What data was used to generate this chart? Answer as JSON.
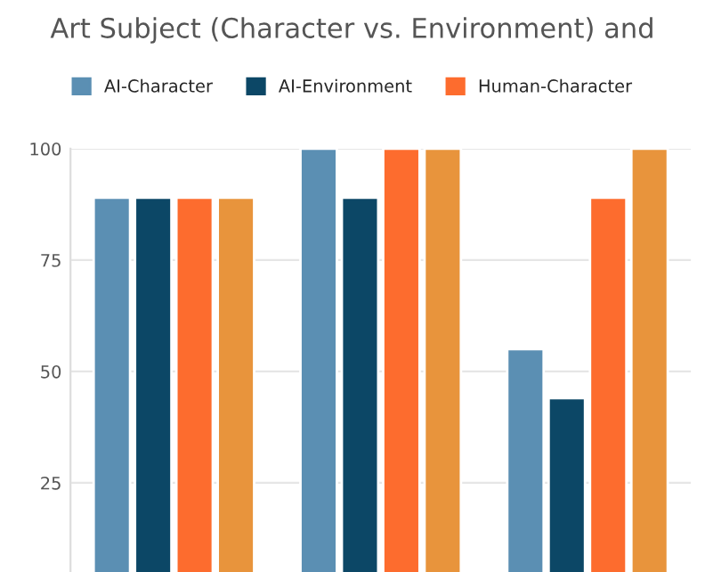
{
  "chart_data": {
    "type": "bar",
    "title": "Art Subject (Character vs. Environment) and",
    "categories": [
      null,
      null,
      null
    ],
    "series": [
      {
        "name": "AI-Character",
        "color": "#5b8fb3",
        "values": [
          89,
          100,
          55
        ]
      },
      {
        "name": "AI-Environment",
        "color": "#0c4766",
        "values": [
          89,
          89,
          44
        ]
      },
      {
        "name": "Human-Character",
        "color": "#fd6c2e",
        "values": [
          89,
          100,
          89
        ]
      },
      {
        "color": "#e8943c",
        "values": [
          89,
          100,
          100
        ]
      }
    ],
    "ylim": [
      5,
      100
    ],
    "yticks": [
      25,
      50,
      75,
      100
    ],
    "grid": "y",
    "legend": "top"
  }
}
